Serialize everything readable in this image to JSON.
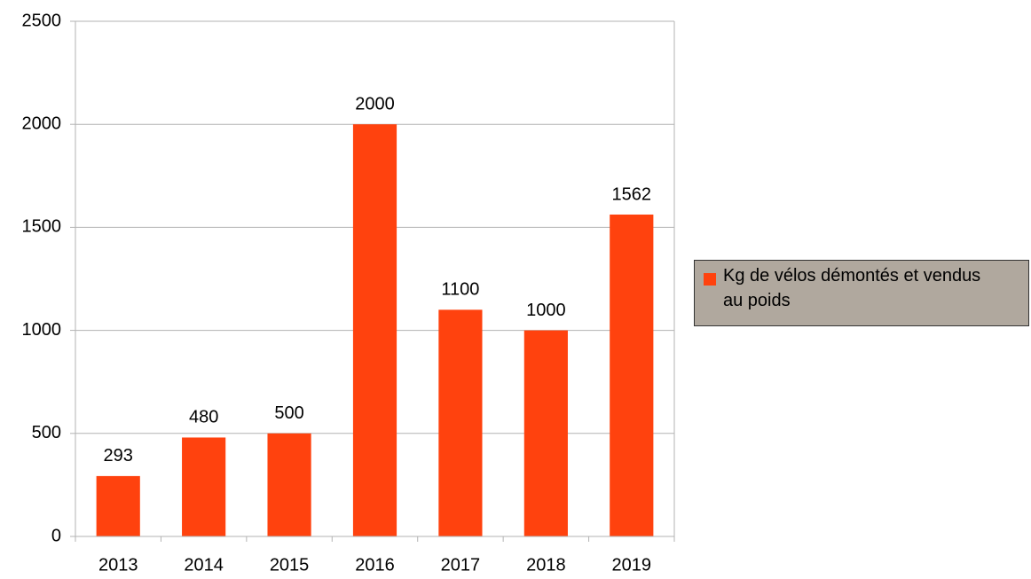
{
  "chart_data": {
    "type": "bar",
    "categories": [
      "2013",
      "2014",
      "2015",
      "2016",
      "2017",
      "2018",
      "2019"
    ],
    "series": [
      {
        "name": "Kg de vélos démontés et vendus au poids",
        "color": "#ff420e",
        "values": [
          293,
          480,
          500,
          2000,
          1100,
          1000,
          1562
        ]
      }
    ],
    "ylim": [
      0,
      2500
    ],
    "yticks": [
      0,
      500,
      1000,
      1500,
      2000,
      2500
    ],
    "grid": true,
    "legend": "right",
    "data_labels": true
  }
}
